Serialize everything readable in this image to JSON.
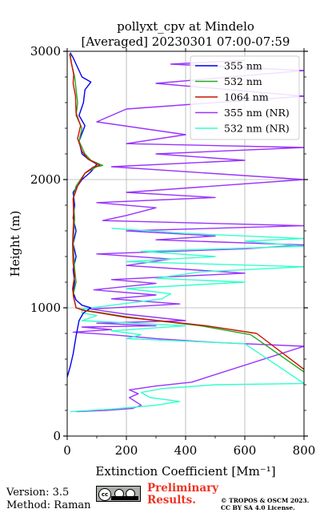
{
  "chart_data": {
    "type": "line",
    "title": "pollyxt_cpv at Mindelo",
    "subtitle": "[Averaged] 20230301 07:00-07:59",
    "xlabel": "Extinction Coefficient [Mm⁻¹]",
    "ylabel": "Height (m)",
    "xlim": [
      0,
      800
    ],
    "ylim": [
      0,
      3000
    ],
    "xticks": [
      0,
      200,
      400,
      600,
      800
    ],
    "yticks": [
      0,
      1000,
      2000,
      3000
    ],
    "grid": true,
    "legend_position": "top-right",
    "series": [
      {
        "name": "355 nm",
        "color": "#0000ee",
        "points": [
          [
            0,
            460
          ],
          [
            10,
            540
          ],
          [
            20,
            640
          ],
          [
            30,
            780
          ],
          [
            40,
            900
          ],
          [
            55,
            960
          ],
          [
            80,
            1000
          ],
          [
            50,
            1020
          ],
          [
            30,
            1060
          ],
          [
            20,
            1120
          ],
          [
            25,
            1200
          ],
          [
            20,
            1300
          ],
          [
            30,
            1400
          ],
          [
            20,
            1500
          ],
          [
            30,
            1600
          ],
          [
            20,
            1700
          ],
          [
            25,
            1800
          ],
          [
            20,
            1900
          ],
          [
            50,
            2000
          ],
          [
            80,
            2060
          ],
          [
            100,
            2120
          ],
          [
            70,
            2160
          ],
          [
            50,
            2200
          ],
          [
            40,
            2300
          ],
          [
            60,
            2420
          ],
          [
            40,
            2500
          ],
          [
            55,
            2600
          ],
          [
            60,
            2700
          ],
          [
            80,
            2760
          ],
          [
            50,
            2800
          ],
          [
            40,
            2850
          ],
          [
            30,
            2900
          ],
          [
            20,
            2950
          ],
          [
            10,
            2990
          ]
        ]
      },
      {
        "name": "532 nm",
        "color": "#22aa22",
        "points": [
          [
            800,
            500
          ],
          [
            620,
            790
          ],
          [
            450,
            860
          ],
          [
            300,
            900
          ],
          [
            200,
            930
          ],
          [
            120,
            960
          ],
          [
            60,
            980
          ],
          [
            30,
            1000
          ],
          [
            25,
            1050
          ],
          [
            20,
            1100
          ],
          [
            30,
            1200
          ],
          [
            25,
            1300
          ],
          [
            20,
            1500
          ],
          [
            25,
            1700
          ],
          [
            20,
            1850
          ],
          [
            30,
            1950
          ],
          [
            60,
            2050
          ],
          [
            100,
            2100
          ],
          [
            120,
            2110
          ],
          [
            80,
            2150
          ],
          [
            60,
            2200
          ],
          [
            40,
            2300
          ],
          [
            50,
            2400
          ],
          [
            30,
            2500
          ],
          [
            35,
            2600
          ],
          [
            30,
            2700
          ],
          [
            25,
            2800
          ],
          [
            15,
            2900
          ],
          [
            10,
            2980
          ]
        ]
      },
      {
        "name": "1064 nm",
        "color": "#cc1100",
        "points": [
          [
            800,
            520
          ],
          [
            640,
            800
          ],
          [
            470,
            860
          ],
          [
            310,
            900
          ],
          [
            200,
            925
          ],
          [
            110,
            960
          ],
          [
            55,
            980
          ],
          [
            30,
            1000
          ],
          [
            22,
            1080
          ],
          [
            18,
            1150
          ],
          [
            25,
            1250
          ],
          [
            20,
            1350
          ],
          [
            18,
            1500
          ],
          [
            22,
            1700
          ],
          [
            20,
            1850
          ],
          [
            35,
            1950
          ],
          [
            60,
            2050
          ],
          [
            90,
            2100
          ],
          [
            110,
            2110
          ],
          [
            70,
            2160
          ],
          [
            50,
            2220
          ],
          [
            35,
            2320
          ],
          [
            45,
            2420
          ],
          [
            30,
            2520
          ],
          [
            28,
            2650
          ],
          [
            20,
            2750
          ],
          [
            22,
            2820
          ],
          [
            15,
            2900
          ],
          [
            8,
            2980
          ]
        ]
      },
      {
        "name": "355 nm (NR)",
        "color": "#9933ff",
        "points": [
          [
            30,
            190
          ],
          [
            130,
            200
          ],
          [
            220,
            215
          ],
          [
            250,
            240
          ],
          [
            230,
            270
          ],
          [
            210,
            300
          ],
          [
            240,
            330
          ],
          [
            210,
            360
          ],
          [
            300,
            390
          ],
          [
            420,
            420
          ],
          [
            800,
            700
          ],
          [
            500,
            730
          ],
          [
            300,
            760
          ],
          [
            150,
            790
          ],
          [
            20,
            810
          ],
          [
            150,
            830
          ],
          [
            50,
            850
          ],
          [
            300,
            860
          ],
          [
            100,
            880
          ],
          [
            400,
            900
          ],
          [
            200,
            950
          ],
          [
            80,
            990
          ],
          [
            380,
            1030
          ],
          [
            150,
            1070
          ],
          [
            300,
            1100
          ],
          [
            90,
            1140
          ],
          [
            300,
            1190
          ],
          [
            150,
            1220
          ],
          [
            600,
            1270
          ],
          [
            200,
            1330
          ],
          [
            350,
            1380
          ],
          [
            100,
            1420
          ],
          [
            600,
            1460
          ],
          [
            800,
            1490
          ],
          [
            300,
            1530
          ],
          [
            500,
            1560
          ],
          [
            200,
            1600
          ],
          [
            800,
            1640
          ],
          [
            120,
            1680
          ],
          [
            200,
            1720
          ],
          [
            300,
            1780
          ],
          [
            100,
            1820
          ],
          [
            500,
            1860
          ],
          [
            200,
            1900
          ],
          [
            800,
            2000
          ],
          [
            150,
            2100
          ],
          [
            600,
            2150
          ],
          [
            300,
            2200
          ],
          [
            800,
            2250
          ],
          [
            200,
            2280
          ],
          [
            400,
            2350
          ],
          [
            100,
            2450
          ],
          [
            200,
            2550
          ],
          [
            800,
            2650
          ],
          [
            300,
            2750
          ],
          [
            800,
            2850
          ],
          [
            350,
            2900
          ],
          [
            600,
            2930
          ]
        ]
      },
      {
        "name": "532 nm (NR)",
        "color": "#33ffcc",
        "points": [
          [
            10,
            190
          ],
          [
            150,
            210
          ],
          [
            300,
            240
          ],
          [
            380,
            270
          ],
          [
            280,
            300
          ],
          [
            250,
            340
          ],
          [
            320,
            370
          ],
          [
            500,
            400
          ],
          [
            800,
            410
          ],
          [
            600,
            720
          ],
          [
            400,
            740
          ],
          [
            200,
            760
          ],
          [
            250,
            790
          ],
          [
            150,
            820
          ],
          [
            400,
            860
          ],
          [
            50,
            900
          ],
          [
            100,
            940
          ],
          [
            50,
            960
          ],
          [
            50,
            990
          ],
          [
            320,
            1070
          ],
          [
            350,
            1110
          ],
          [
            200,
            1150
          ],
          [
            600,
            1200
          ],
          [
            300,
            1230
          ],
          [
            450,
            1280
          ],
          [
            800,
            1320
          ],
          [
            200,
            1360
          ],
          [
            500,
            1400
          ],
          [
            250,
            1440
          ],
          [
            800,
            1480
          ],
          [
            600,
            1520
          ],
          [
            800,
            1540
          ],
          [
            400,
            1580
          ],
          [
            150,
            1620
          ]
        ]
      }
    ]
  },
  "footer": {
    "version": "Version: 3.5",
    "method": "Method: Raman",
    "preliminary": "Preliminary Results.",
    "copyright_line1": "© TROPOS & OSCM 2023.",
    "copyright_line2": "CC BY SA 4.0 License."
  }
}
